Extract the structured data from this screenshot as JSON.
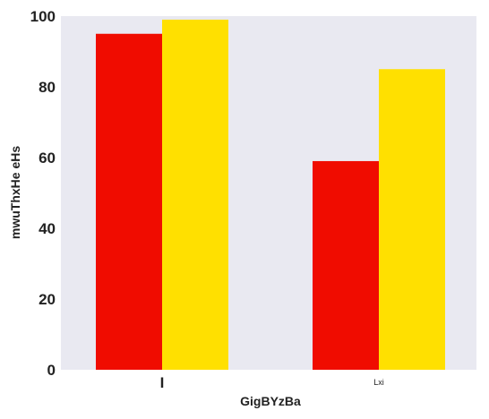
{
  "chart_data": {
    "type": "bar",
    "title": "",
    "xlabel": "GigBYzBa",
    "ylabel": "mwuThxHe eHs",
    "categories": [
      "I",
      "Lxi"
    ],
    "series": [
      {
        "color": "#f00c00",
        "values": [
          95,
          59
        ]
      },
      {
        "color": "#ffe000",
        "values": [
          99,
          85
        ]
      }
    ],
    "ylim": [
      0,
      100
    ],
    "yticks": [
      0,
      20,
      40,
      60,
      80,
      100
    ],
    "grid": false,
    "background": "#e9e9f1"
  }
}
